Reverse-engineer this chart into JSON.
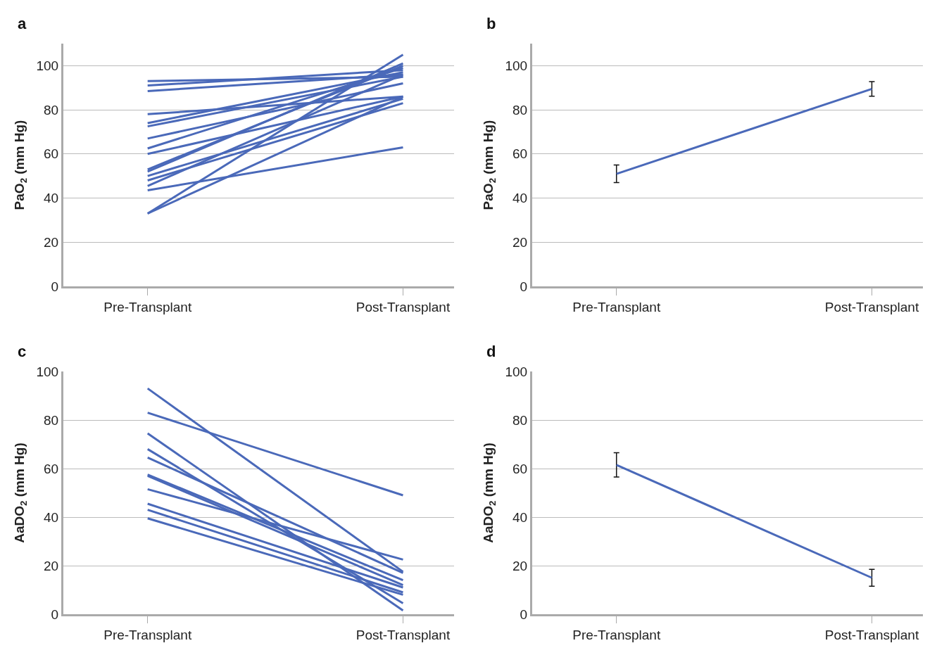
{
  "chart_data": [
    {
      "type": "line",
      "annotations": [
        "a"
      ],
      "ylabel": "PaO$_{2}$ (mm Hg)",
      "categories": [
        "Pre-Transplant",
        "Post-Transplant"
      ],
      "ylim": [
        0,
        110
      ],
      "yticks": [
        0,
        20,
        40,
        60,
        80,
        100
      ],
      "grid": "y",
      "marker": "none",
      "line_style": "solid",
      "series": [
        {
          "color": "#4a69b9",
          "values": [
            93,
            95
          ]
        },
        {
          "color": "#4a69b9",
          "values": [
            91,
            98
          ]
        },
        {
          "color": "#4a69b9",
          "values": [
            88.5,
            96
          ]
        },
        {
          "color": "#4a69b9",
          "values": [
            78,
            86
          ]
        },
        {
          "color": "#4a69b9",
          "values": [
            74,
            97
          ]
        },
        {
          "color": "#4a69b9",
          "values": [
            72.5,
            95
          ]
        },
        {
          "color": "#4a69b9",
          "values": [
            67,
            92
          ]
        },
        {
          "color": "#4a69b9",
          "values": [
            62.5,
            99
          ]
        },
        {
          "color": "#4a69b9",
          "values": [
            60,
            86
          ]
        },
        {
          "color": "#4a69b9",
          "values": [
            53,
            100
          ]
        },
        {
          "color": "#4a69b9",
          "values": [
            52,
            101
          ]
        },
        {
          "color": "#4a69b9",
          "values": [
            50,
            85
          ]
        },
        {
          "color": "#4a69b9",
          "values": [
            48,
            83
          ]
        },
        {
          "color": "#4a69b9",
          "values": [
            45.5,
            96
          ]
        },
        {
          "color": "#4a69b9",
          "values": [
            43.5,
            63
          ]
        },
        {
          "color": "#4a69b9",
          "values": [
            33,
            105
          ]
        },
        {
          "color": "#4a69b9",
          "values": [
            33,
            86
          ]
        }
      ]
    },
    {
      "type": "line",
      "annotations": [
        "b"
      ],
      "ylabel": "PaO$_{2}$ (mm Hg)",
      "categories": [
        "Pre-Transplant",
        "Post-Transplant"
      ],
      "ylim": [
        0,
        110
      ],
      "yticks": [
        0,
        20,
        40,
        60,
        80,
        100
      ],
      "grid": "y",
      "marker": "none",
      "line_style": "solid",
      "series": [
        {
          "color": "#4a69b9",
          "values": [
            51,
            89.5
          ],
          "errors": [
            4,
            3.3
          ]
        }
      ]
    },
    {
      "type": "line",
      "annotations": [
        "c"
      ],
      "ylabel": "AaDO$_{2}$ (mm Hg)",
      "categories": [
        "Pre-Transplant",
        "Post-Transplant"
      ],
      "ylim": [
        0,
        100
      ],
      "yticks": [
        0,
        20,
        40,
        60,
        80,
        100
      ],
      "grid": "y",
      "marker": "none",
      "line_style": "solid",
      "series": [
        {
          "color": "#4a69b9",
          "values": [
            93,
            17.5
          ]
        },
        {
          "color": "#4a69b9",
          "values": [
            83,
            49
          ]
        },
        {
          "color": "#4a69b9",
          "values": [
            74.5,
            1.5
          ]
        },
        {
          "color": "#4a69b9",
          "values": [
            68,
            4.5
          ]
        },
        {
          "color": "#4a69b9",
          "values": [
            64.5,
            17
          ]
        },
        {
          "color": "#4a69b9",
          "values": [
            57.5,
            14
          ]
        },
        {
          "color": "#4a69b9",
          "values": [
            57,
            12
          ]
        },
        {
          "color": "#4a69b9",
          "values": [
            51.5,
            22.5
          ]
        },
        {
          "color": "#4a69b9",
          "values": [
            45.5,
            11
          ]
        },
        {
          "color": "#4a69b9",
          "values": [
            43,
            9
          ]
        },
        {
          "color": "#4a69b9",
          "values": [
            39.5,
            8
          ]
        }
      ]
    },
    {
      "type": "line",
      "annotations": [
        "d"
      ],
      "ylabel": "AaDO$_{2}$ (mm Hg)",
      "categories": [
        "Pre-Transplant",
        "Post-Transplant"
      ],
      "ylim": [
        0,
        100
      ],
      "yticks": [
        0,
        20,
        40,
        60,
        80,
        100
      ],
      "grid": "y",
      "marker": "none",
      "line_style": "solid",
      "series": [
        {
          "color": "#4a69b9",
          "values": [
            61.5,
            15
          ],
          "errors": [
            5,
            3.5
          ]
        }
      ]
    }
  ]
}
